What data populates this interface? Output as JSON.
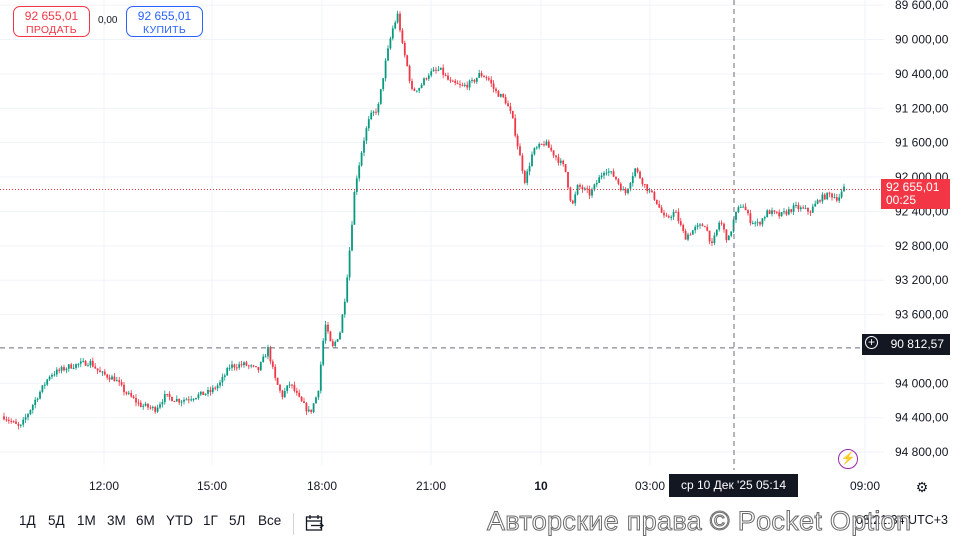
{
  "trade_panel": {
    "sell_price": "92 655,01",
    "sell_label": "ПРОДАТЬ",
    "spread": "0,00",
    "buy_price": "92 655,01",
    "buy_label": "КУПИТЬ"
  },
  "price_axis": {
    "ticks": [
      "94 800,00",
      "94 400,00",
      "94 000,00",
      "93 600,00",
      "93 200,00",
      "92 800,00",
      "92 400,00",
      "92 000,00",
      "91 600,00",
      "91 200,00",
      "90 400,00",
      "90 000,00",
      "89 600,00"
    ],
    "last_price": "92 655,01",
    "countdown": "00:25",
    "crosshair_price": "90 812,57"
  },
  "time_axis": {
    "ticks": [
      "12:00",
      "15:00",
      "18:00",
      "21:00",
      "10",
      "03:00",
      "09:00"
    ],
    "crosshair_time": "ср 10 Дек '25   05:14"
  },
  "chart_data": {
    "type": "candlestick",
    "ylim": [
      89450,
      94860
    ],
    "y_ticks": [
      89600,
      90000,
      90400,
      91200,
      91600,
      92000,
      92400,
      92800,
      93200,
      93600,
      94000,
      94400,
      94800
    ],
    "last_price": 92655.01,
    "crosshair_price": 90812.57,
    "up_color": "#089981",
    "down_color": "#f23645",
    "path": [
      [
        0,
        90050
      ],
      [
        20,
        89880
      ],
      [
        35,
        90200
      ],
      [
        50,
        90500
      ],
      [
        70,
        90600
      ],
      [
        90,
        90650
      ],
      [
        100,
        90520
      ],
      [
        115,
        90450
      ],
      [
        125,
        90300
      ],
      [
        140,
        90150
      ],
      [
        155,
        90100
      ],
      [
        165,
        90250
      ],
      [
        180,
        90200
      ],
      [
        195,
        90250
      ],
      [
        210,
        90300
      ],
      [
        220,
        90400
      ],
      [
        230,
        90600
      ],
      [
        245,
        90620
      ],
      [
        258,
        90550
      ],
      [
        268,
        90800
      ],
      [
        275,
        90450
      ],
      [
        282,
        90250
      ],
      [
        290,
        90400
      ],
      [
        300,
        90200
      ],
      [
        310,
        90050
      ],
      [
        318,
        90300
      ],
      [
        325,
        91100
      ],
      [
        332,
        90800
      ],
      [
        340,
        91000
      ],
      [
        345,
        91400
      ],
      [
        350,
        92000
      ],
      [
        355,
        92700
      ],
      [
        360,
        93000
      ],
      [
        365,
        93300
      ],
      [
        370,
        93500
      ],
      [
        378,
        93600
      ],
      [
        385,
        94100
      ],
      [
        392,
        94500
      ],
      [
        398,
        94700
      ],
      [
        402,
        94350
      ],
      [
        407,
        94100
      ],
      [
        412,
        93800
      ],
      [
        420,
        93850
      ],
      [
        428,
        94000
      ],
      [
        440,
        94050
      ],
      [
        450,
        93900
      ],
      [
        462,
        93850
      ],
      [
        472,
        93900
      ],
      [
        480,
        94000
      ],
      [
        488,
        93950
      ],
      [
        495,
        93800
      ],
      [
        505,
        93700
      ],
      [
        512,
        93500
      ],
      [
        518,
        93150
      ],
      [
        525,
        92750
      ],
      [
        533,
        93100
      ],
      [
        545,
        93200
      ],
      [
        555,
        93050
      ],
      [
        565,
        92900
      ],
      [
        572,
        92450
      ],
      [
        578,
        92700
      ],
      [
        590,
        92600
      ],
      [
        605,
        92900
      ],
      [
        615,
        92800
      ],
      [
        625,
        92600
      ],
      [
        635,
        92900
      ],
      [
        645,
        92700
      ],
      [
        655,
        92550
      ],
      [
        665,
        92300
      ],
      [
        675,
        92400
      ],
      [
        685,
        92100
      ],
      [
        695,
        92200
      ],
      [
        705,
        92250
      ],
      [
        712,
        92000
      ],
      [
        720,
        92300
      ],
      [
        728,
        92050
      ],
      [
        735,
        92350
      ],
      [
        742,
        92500
      ],
      [
        750,
        92300
      ],
      [
        758,
        92250
      ],
      [
        768,
        92400
      ],
      [
        780,
        92350
      ],
      [
        795,
        92450
      ],
      [
        810,
        92400
      ],
      [
        820,
        92550
      ],
      [
        830,
        92600
      ],
      [
        838,
        92550
      ],
      [
        845,
        92680
      ]
    ]
  },
  "bottom_bar": {
    "ranges": [
      "1Д",
      "5Д",
      "1М",
      "3М",
      "6М",
      "YTD",
      "1Г",
      "5Л",
      "Все"
    ],
    "clock": "08:21:34 UTC+3"
  },
  "watermark": "Авторские права © Pocket Option",
  "icons": {
    "goto_date": "calendar-arrow-icon",
    "settings": "gear-icon",
    "bolt": "lightning-icon",
    "crosshair_add": "plus-circle-icon"
  }
}
